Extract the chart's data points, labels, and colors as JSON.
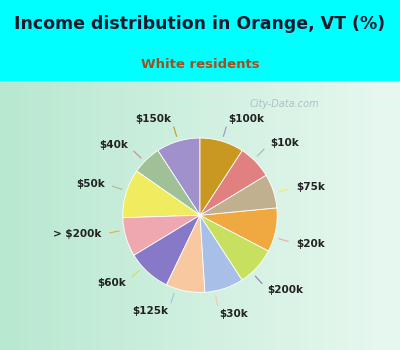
{
  "title": "Income distribution in Orange, VT (%)",
  "subtitle": "White residents",
  "title_color": "#1a1a2e",
  "subtitle_color": "#a05020",
  "bg_outer": "#00ffff",
  "labels": [
    "$100k",
    "$10k",
    "$75k",
    "$20k",
    "$200k",
    "$30k",
    "$125k",
    "$60k",
    "> $200k",
    "$50k",
    "$40k",
    "$150k"
  ],
  "sizes": [
    9,
    6,
    10,
    8,
    9,
    8,
    8,
    8,
    9,
    7,
    7,
    9
  ],
  "colors": [
    "#a090cc",
    "#a0c098",
    "#f0ec60",
    "#f0a8b0",
    "#8878c8",
    "#f8c8a0",
    "#a8c0e8",
    "#c8e060",
    "#f0a840",
    "#c0b090",
    "#e08080",
    "#c89820"
  ],
  "startangle": 90,
  "label_fontsize": 7.5,
  "bg_gradient_left": "#b8e8d0",
  "bg_gradient_right": "#e8f8f0"
}
